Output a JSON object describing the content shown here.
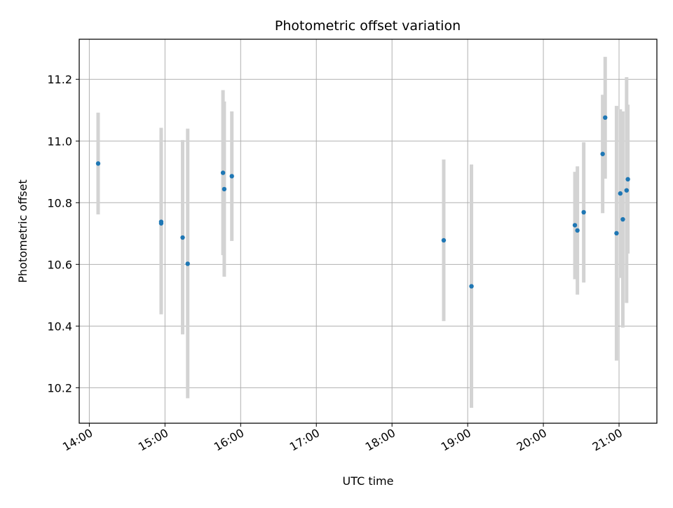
{
  "chart_data": {
    "type": "scatter",
    "title": "Photometric offset variation",
    "xlabel": "UTC time",
    "ylabel": "Photometric offset",
    "xlim": [
      "13:52",
      "21:30"
    ],
    "ylim": [
      10.085,
      11.33
    ],
    "x_ticks": [
      "14:00",
      "15:00",
      "16:00",
      "17:00",
      "18:00",
      "19:00",
      "20:00",
      "21:00"
    ],
    "y_ticks": [
      "10.2",
      "10.4",
      "10.6",
      "10.8",
      "11.0",
      "11.2"
    ],
    "grid": true,
    "colors": {
      "point": "#1f77b4",
      "errorbar": "#d3d3d3",
      "grid": "#b0b0b0"
    },
    "points": [
      {
        "t": "14:07",
        "y": 10.927,
        "lo": 10.762,
        "hi": 11.092
      },
      {
        "t": "14:57",
        "y": 10.738,
        "lo": 10.438,
        "hi": 11.043
      },
      {
        "t": "14:57",
        "y": 10.733,
        "lo": 10.445,
        "hi": 11.022
      },
      {
        "t": "15:14",
        "y": 10.687,
        "lo": 10.373,
        "hi": 11.003
      },
      {
        "t": "15:18",
        "y": 10.602,
        "lo": 10.166,
        "hi": 11.04
      },
      {
        "t": "15:46",
        "y": 10.897,
        "lo": 10.63,
        "hi": 11.165
      },
      {
        "t": "15:47",
        "y": 10.844,
        "lo": 10.56,
        "hi": 11.128
      },
      {
        "t": "15:53",
        "y": 10.886,
        "lo": 10.676,
        "hi": 11.096
      },
      {
        "t": "18:41",
        "y": 10.678,
        "lo": 10.416,
        "hi": 10.94
      },
      {
        "t": "19:03",
        "y": 10.529,
        "lo": 10.135,
        "hi": 10.924
      },
      {
        "t": "20:25",
        "y": 10.727,
        "lo": 10.552,
        "hi": 10.9
      },
      {
        "t": "20:27",
        "y": 10.71,
        "lo": 10.502,
        "hi": 10.918
      },
      {
        "t": "20:32",
        "y": 10.769,
        "lo": 10.541,
        "hi": 10.996
      },
      {
        "t": "20:47",
        "y": 10.958,
        "lo": 10.766,
        "hi": 11.15
      },
      {
        "t": "20:49",
        "y": 11.076,
        "lo": 10.878,
        "hi": 11.273
      },
      {
        "t": "20:58",
        "y": 10.701,
        "lo": 10.288,
        "hi": 11.114
      },
      {
        "t": "21:01",
        "y": 10.83,
        "lo": 10.556,
        "hi": 11.103
      },
      {
        "t": "21:03",
        "y": 10.746,
        "lo": 10.395,
        "hi": 11.096
      },
      {
        "t": "21:06",
        "y": 10.84,
        "lo": 10.475,
        "hi": 11.207
      },
      {
        "t": "21:07",
        "y": 10.876,
        "lo": 10.635,
        "hi": 11.118
      }
    ]
  }
}
